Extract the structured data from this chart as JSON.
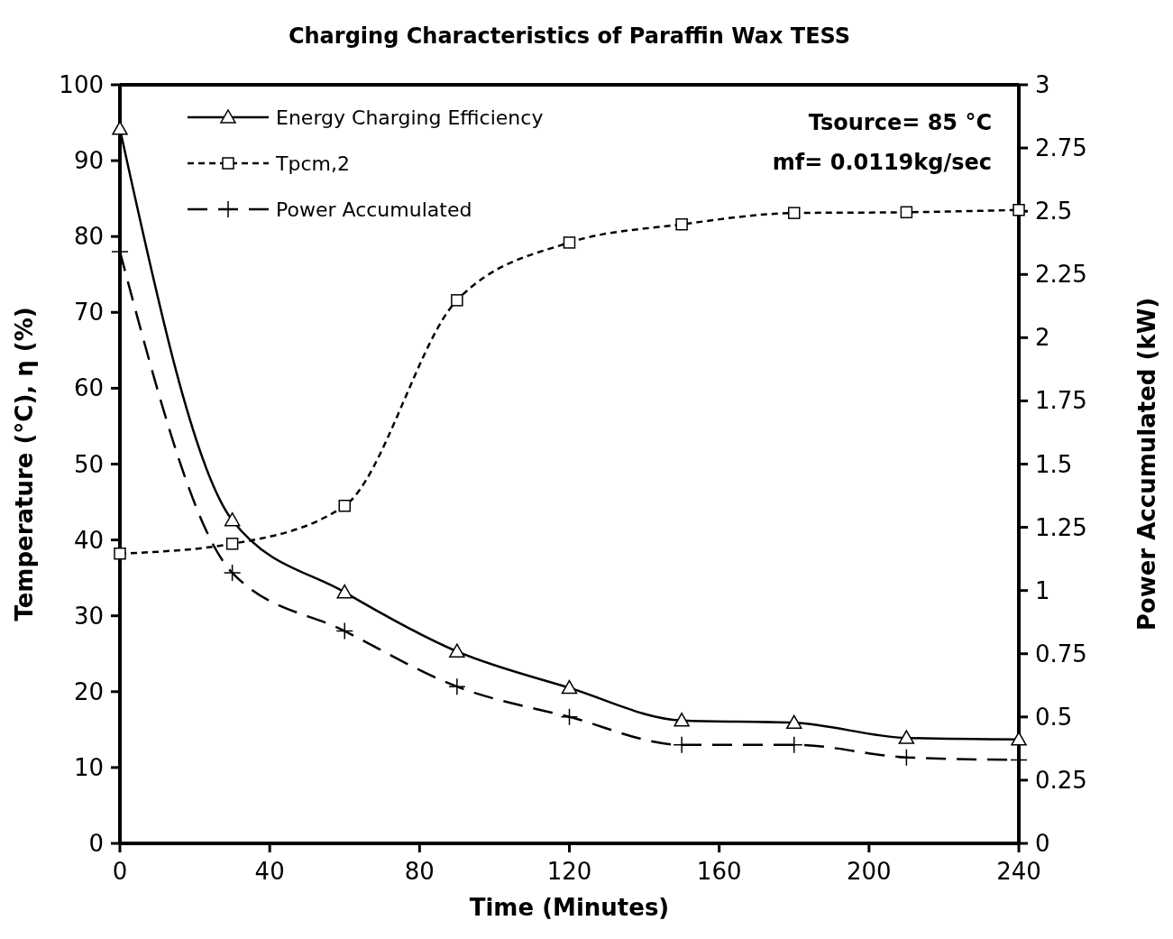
{
  "chart_data": {
    "type": "line",
    "title": "Charging Characteristics of Paraffin Wax TESS",
    "xlabel": "Time (Minutes)",
    "ylabel": "Temperature (°C), η (%)",
    "y2label": "Power Accumulated (kW)",
    "x": [
      0,
      30,
      60,
      90,
      120,
      150,
      180,
      210,
      240
    ],
    "xlim": [
      0,
      240
    ],
    "xticks": [
      0,
      40,
      80,
      120,
      160,
      200,
      240
    ],
    "ylim": [
      0,
      100
    ],
    "yticks": [
      0,
      10,
      20,
      30,
      40,
      50,
      60,
      70,
      80,
      90,
      100
    ],
    "y2lim": [
      0,
      3
    ],
    "y2ticks": [
      0,
      0.25,
      0.5,
      0.75,
      1,
      1.25,
      1.5,
      1.75,
      2,
      2.25,
      2.5,
      2.75,
      3
    ],
    "grid": false,
    "legend": "top left",
    "annotations": [
      "Tsource= 85 °C",
      "mf= 0.0119kg/sec"
    ],
    "series": [
      {
        "name": "Energy Charging Efficiency",
        "color": "#000000",
        "marker": "triangle",
        "line_style": "solid",
        "values": [
          94.2,
          42.6,
          33.1,
          25.3,
          20.5,
          16.2,
          15.9,
          13.9,
          13.7
        ]
      },
      {
        "name": "Tpcm,2",
        "color": "#000000",
        "marker": "square",
        "line_style": "dotted",
        "values": [
          38.2,
          39.5,
          44.5,
          71.6,
          79.2,
          81.6,
          83.1,
          83.2,
          83.5
        ]
      },
      {
        "name": "Power Accumulated",
        "color": "#000000",
        "marker": "cross",
        "line_style": "dashed",
        "axis": "y2",
        "values": [
          2.34,
          1.07,
          0.84,
          0.62,
          0.5,
          0.39,
          0.39,
          0.34,
          0.33
        ]
      }
    ]
  }
}
